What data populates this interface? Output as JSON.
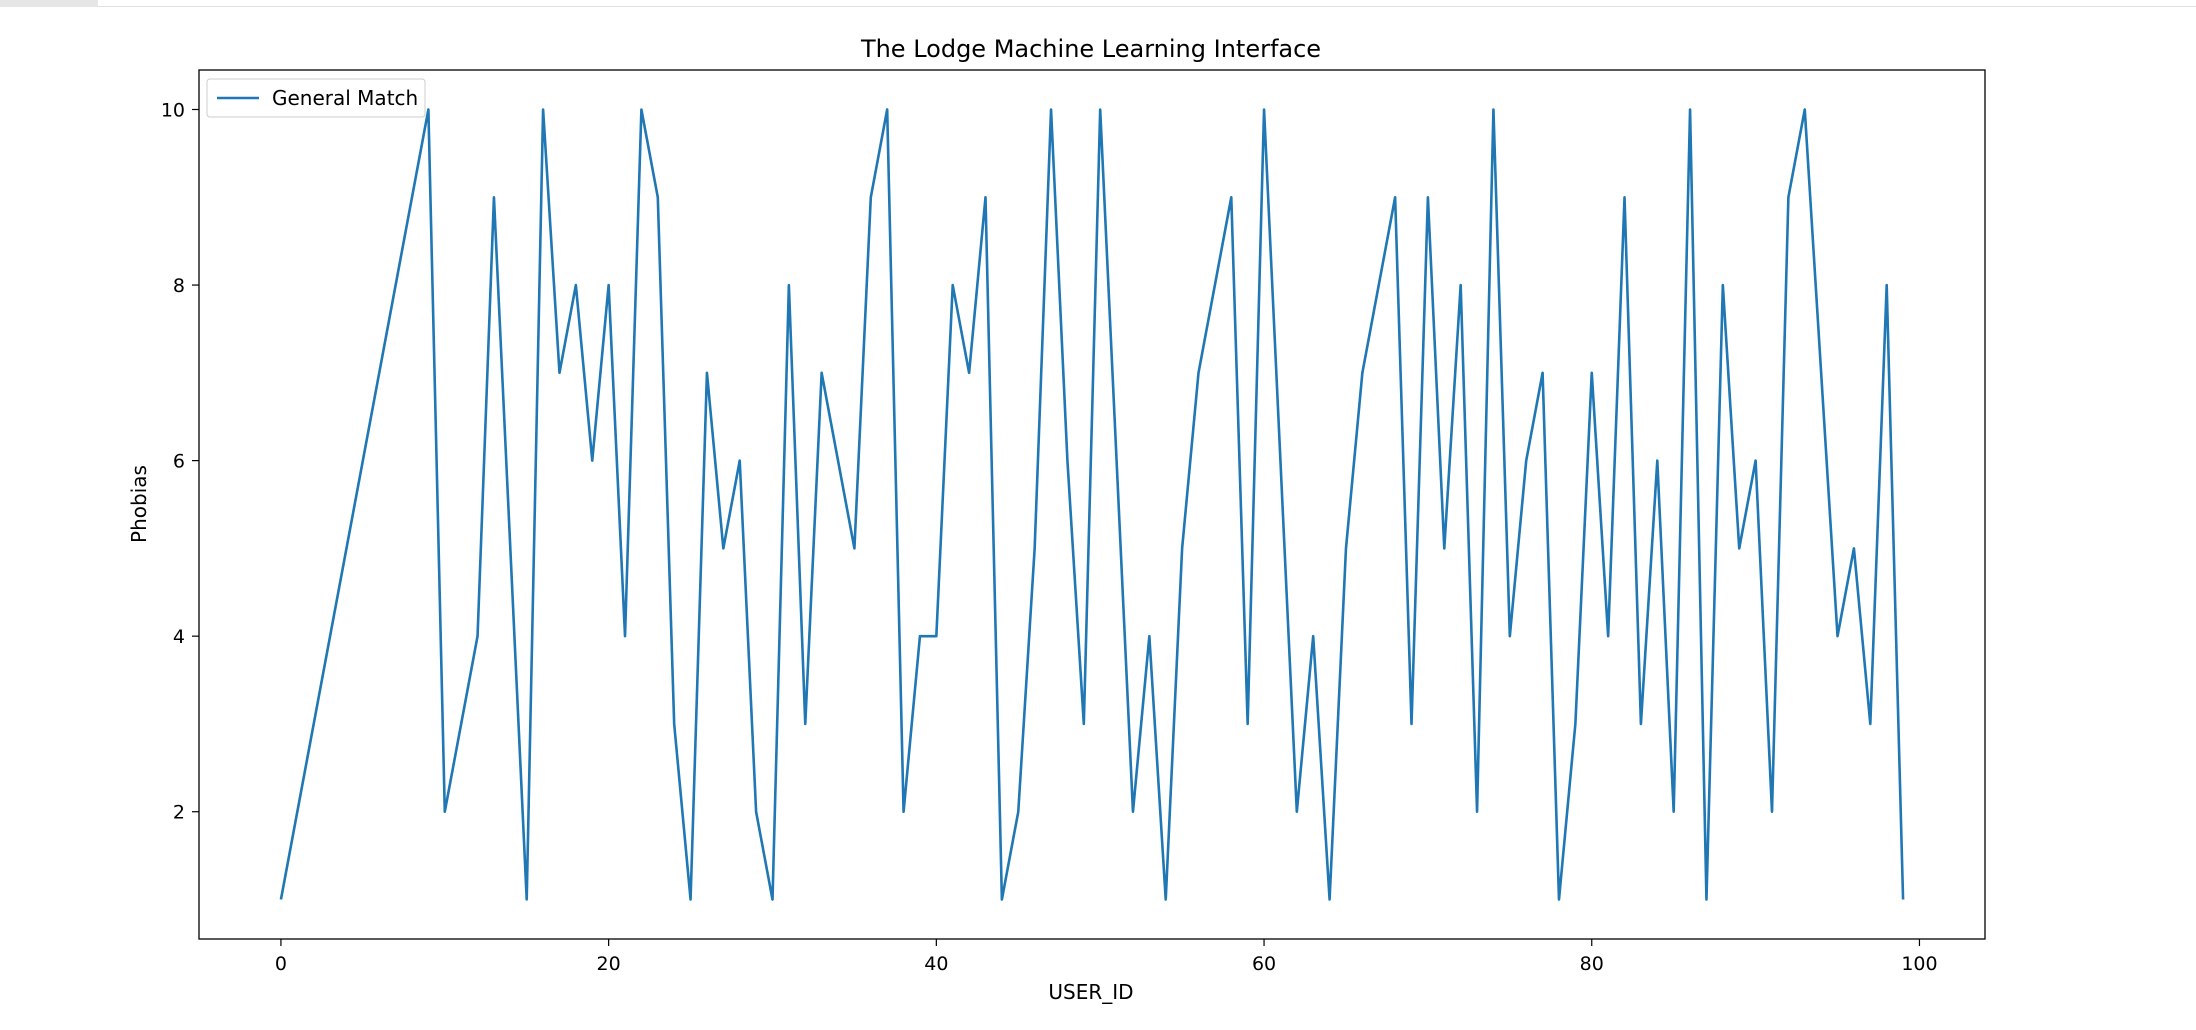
{
  "chart_data": {
    "type": "line",
    "title": "The Lodge Machine Learning Interface",
    "xlabel": "USER_ID",
    "ylabel": "Phobias",
    "xlim": [
      -5,
      104
    ],
    "ylim": [
      0.55,
      10.45
    ],
    "xticks": [
      0,
      20,
      40,
      60,
      80,
      100
    ],
    "yticks": [
      2,
      4,
      6,
      8,
      10
    ],
    "grid": false,
    "legend_position": "upper-left",
    "line_color": "#1f77b4",
    "series": [
      {
        "name": "General Match",
        "x": [
          0,
          9,
          10,
          12,
          13,
          15,
          16,
          17,
          18,
          19,
          20,
          21,
          22,
          23,
          24,
          25,
          26,
          27,
          28,
          29,
          30,
          31,
          32,
          33,
          35,
          36,
          37,
          38,
          39,
          40,
          41,
          42,
          43,
          44,
          45,
          46,
          47,
          48,
          49,
          50,
          51,
          52,
          53,
          54,
          55,
          56,
          58,
          59,
          60,
          61,
          62,
          63,
          64,
          65,
          66,
          68,
          69,
          70,
          71,
          72,
          73,
          74,
          75,
          76,
          77,
          78,
          79,
          80,
          81,
          82,
          83,
          84,
          85,
          86,
          87,
          88,
          89,
          90,
          91,
          92,
          93,
          95,
          96,
          97,
          98,
          99
        ],
        "y": [
          1,
          10,
          2,
          4,
          9,
          1,
          10,
          7,
          8,
          6,
          8,
          4,
          10,
          9,
          3,
          1,
          7,
          5,
          6,
          2,
          1,
          8,
          3,
          7,
          5,
          9,
          10,
          2,
          4,
          4,
          8,
          7,
          9,
          1,
          2,
          5,
          10,
          6,
          3,
          10,
          6,
          2,
          4,
          1,
          5,
          7,
          9,
          3,
          10,
          6,
          2,
          4,
          1,
          5,
          7,
          9,
          3,
          9,
          5,
          8,
          2,
          10,
          4,
          6,
          7,
          1,
          3,
          7,
          4,
          9,
          3,
          6,
          2,
          10,
          1,
          8,
          5,
          6,
          2,
          9,
          10,
          4,
          5,
          3,
          8,
          1
        ]
      }
    ]
  }
}
